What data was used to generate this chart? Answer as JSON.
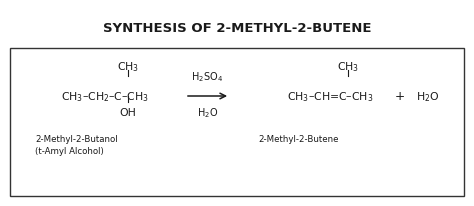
{
  "title": "SYNTHESIS OF 2-METHYL-2-BUTENE",
  "title_fontsize": 9.5,
  "title_fontweight": "bold",
  "bg_color": "#ffffff",
  "box_color": "#333333",
  "text_color": "#1a1a1a",
  "fig_width": 4.74,
  "fig_height": 2.07,
  "dpi": 100,
  "main_fontsize": 7.8,
  "cond_fontsize": 7.0,
  "label_fontsize": 6.2,
  "reactant_label1": "2-Methyl-2-Butanol",
  "reactant_label2": "(t-Amyl Alcohol)",
  "product_label": "2-Methyl-2-Butene"
}
